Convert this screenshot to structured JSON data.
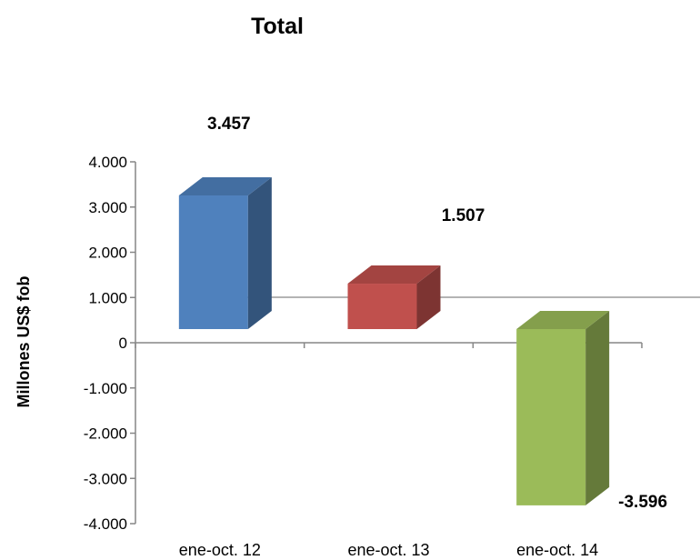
{
  "chart_data": {
    "type": "bar",
    "title": "Total",
    "xlabel": "",
    "ylabel": "Millones US$ fob",
    "categories": [
      "ene-oct. 12",
      "ene-oct. 13",
      "ene-oct. 14"
    ],
    "values": [
      3457,
      1507,
      -3596
    ],
    "data_labels": [
      "3.457",
      "1.507",
      "-3.596"
    ],
    "ylim": [
      -4000,
      4000
    ],
    "yticks": [
      4000,
      3000,
      2000,
      1000,
      0,
      -1000,
      -2000,
      -3000,
      -4000
    ],
    "ytick_labels": [
      "4.000",
      "3.000",
      "2.000",
      "1.000",
      "0",
      "-1.000",
      "-2.000",
      "-3.000",
      "-4.000"
    ],
    "colors": [
      "#4F81BD",
      "#C0504D",
      "#9BBB59"
    ],
    "legend": "none",
    "grid": false
  }
}
